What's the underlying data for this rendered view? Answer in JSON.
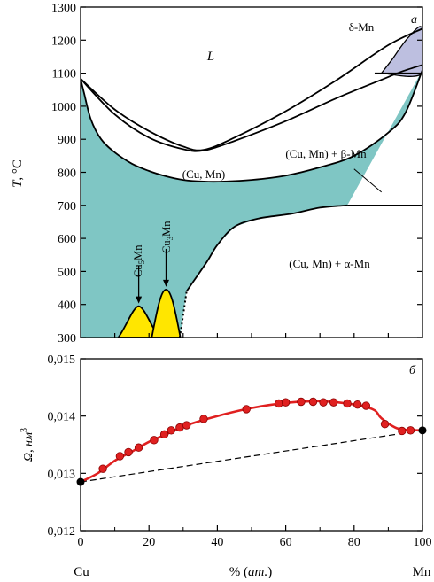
{
  "figure": {
    "bottom_left_label": "Cu",
    "bottom_right_label": "Mn",
    "x_label_prefix": "% (",
    "x_label_unit": "ат.",
    "x_label_suffix": ")"
  },
  "chart_data": [
    {
      "type": "area",
      "panel_letter": "а",
      "ylabel_var": "T",
      "ylabel_unit": ", °C",
      "xlim": [
        0,
        100
      ],
      "ylim": [
        300,
        1300
      ],
      "y_ticks": [
        300,
        400,
        500,
        600,
        700,
        800,
        900,
        1000,
        1100,
        1200,
        1300
      ],
      "grid": false,
      "colors": {
        "solid_solution": "#7fc6c4",
        "intermetallic": "#ffe600",
        "delta_region": "#bdbfe0"
      },
      "region_labels": {
        "liquid": "L",
        "delta": "δ-Mn",
        "solid_solution": "(Cu, Mn)",
        "two_phase_beta": "(Cu, Mn) + β-Mn",
        "two_phase_alpha": "(Cu, Mn) + α-Mn"
      },
      "compounds": [
        {
          "base": "Cu",
          "sub": "5",
          "tail": "Mn",
          "x": 17,
          "T_max": 395
        },
        {
          "base": "Cu",
          "sub": "3",
          "tail": "Mn",
          "x": 25,
          "T_max": 445
        }
      ],
      "liquidus": [
        [
          0,
          1083
        ],
        [
          10,
          990
        ],
        [
          20,
          925
        ],
        [
          30,
          878
        ],
        [
          36,
          868
        ],
        [
          45,
          905
        ],
        [
          60,
          985
        ],
        [
          75,
          1080
        ],
        [
          90,
          1185
        ],
        [
          100,
          1235
        ]
      ],
      "solidus": [
        [
          0,
          1083
        ],
        [
          10,
          975
        ],
        [
          20,
          905
        ],
        [
          30,
          870
        ],
        [
          36,
          866
        ],
        [
          45,
          895
        ],
        [
          60,
          955
        ],
        [
          75,
          1025
        ],
        [
          88,
          1080
        ],
        [
          94,
          1105
        ],
        [
          100,
          1125
        ]
      ],
      "solvus": [
        [
          0,
          1083
        ],
        [
          1,
          1040
        ],
        [
          3,
          960
        ],
        [
          6,
          900
        ],
        [
          10,
          860
        ],
        [
          15,
          826
        ],
        [
          20,
          804
        ],
        [
          25,
          788
        ],
        [
          30,
          777
        ],
        [
          36,
          772
        ],
        [
          42,
          772
        ],
        [
          50,
          777
        ],
        [
          60,
          790
        ],
        [
          70,
          815
        ],
        [
          80,
          850
        ],
        [
          90,
          920
        ],
        [
          95,
          980
        ],
        [
          100,
          1110
        ]
      ],
      "gamma_boundary_low": [
        [
          31,
          440
        ],
        [
          37,
          530
        ],
        [
          40,
          580
        ],
        [
          45,
          635
        ],
        [
          52,
          660
        ],
        [
          62,
          675
        ],
        [
          70,
          693
        ],
        [
          78,
          700
        ]
      ],
      "gamma_dotted": [
        [
          29,
          300
        ],
        [
          29.6,
          340
        ],
        [
          30.3,
          390
        ],
        [
          31,
          440
        ]
      ],
      "beta_alpha_line": {
        "from": 78,
        "to": 100,
        "T": 700
      },
      "delta_beta_line": {
        "from": 86,
        "to": 100,
        "T": 1100
      },
      "delta_region": [
        [
          88,
          1100
        ],
        [
          100,
          1100
        ],
        [
          100,
          1235
        ],
        [
          96,
          1210
        ],
        [
          91,
          1140
        ]
      ]
    },
    {
      "type": "scatter",
      "panel_letter": "б",
      "ylabel_var": "Ω",
      "ylabel_unit_base": "нм",
      "ylabel_unit_exp": "3",
      "xlim": [
        0,
        100
      ],
      "ylim": [
        0.012,
        0.015
      ],
      "y_ticks": [
        "0,012",
        "0,013",
        "0,014",
        "0,015"
      ],
      "x_ticks": [
        0,
        20,
        40,
        60,
        80,
        100
      ],
      "grid": false,
      "series": [
        {
          "color": "#e02020",
          "marker": "circle",
          "x": [
            6.5,
            11.5,
            14,
            17,
            21.5,
            24.5,
            26.5,
            29,
            31,
            36,
            48.5,
            58,
            60,
            64.5,
            68,
            71,
            74,
            78,
            81,
            83.5,
            89,
            94,
            96.5
          ],
          "y": [
            0.01308,
            0.0133,
            0.01337,
            0.01345,
            0.01358,
            0.01368,
            0.01375,
            0.0138,
            0.01384,
            0.01395,
            0.01412,
            0.01422,
            0.01424,
            0.01425,
            0.01425,
            0.01424,
            0.01424,
            0.01422,
            0.0142,
            0.01418,
            0.01386,
            0.01374,
            0.01375
          ]
        }
      ],
      "fit_curve": {
        "x": [
          0,
          5,
          10,
          15,
          20,
          25,
          30,
          40,
          50,
          60,
          68,
          75,
          82,
          86,
          88,
          92,
          95,
          100
        ],
        "y": [
          0.01285,
          0.013,
          0.01322,
          0.01338,
          0.01355,
          0.01368,
          0.01382,
          0.014,
          0.01414,
          0.01423,
          0.01426,
          0.01424,
          0.01418,
          0.0141,
          0.01396,
          0.0138,
          0.01376,
          0.01375
        ]
      },
      "endpoints": {
        "x": [
          0,
          100
        ],
        "y": [
          0.01285,
          0.01375
        ]
      },
      "vegard_line": {
        "x": [
          0,
          100
        ],
        "y": [
          0.01285,
          0.01375
        ]
      }
    }
  ]
}
